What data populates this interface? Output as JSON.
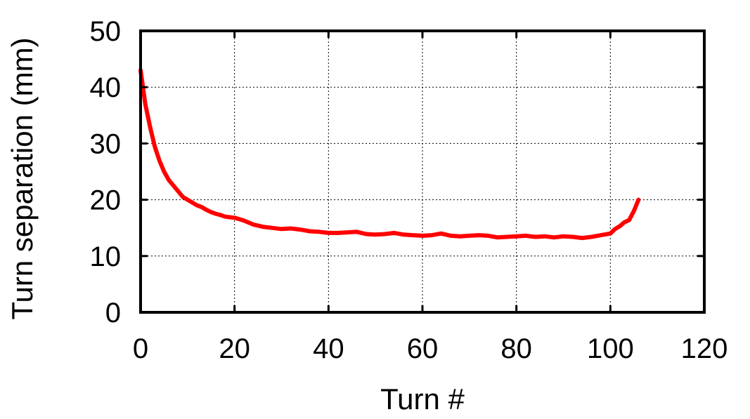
{
  "chart_data": {
    "type": "line",
    "title": "",
    "xlabel": "Turn #",
    "ylabel": "Turn separation (mm)",
    "xlim": [
      0,
      120
    ],
    "ylim": [
      0,
      50
    ],
    "xticks": [
      0,
      20,
      40,
      60,
      80,
      100,
      120
    ],
    "yticks": [
      0,
      10,
      20,
      30,
      40,
      50
    ],
    "grid": true,
    "line_color": "#ff0000",
    "series": [
      {
        "x": [
          0,
          1,
          2,
          3,
          4,
          5,
          6,
          7,
          8,
          9,
          10,
          11,
          12,
          13,
          14,
          15,
          16,
          17,
          18,
          19,
          20,
          22,
          24,
          26,
          28,
          30,
          32,
          34,
          36,
          38,
          40,
          42,
          44,
          46,
          48,
          50,
          52,
          54,
          56,
          58,
          60,
          62,
          64,
          65,
          66,
          68,
          70,
          72,
          74,
          76,
          78,
          80,
          82,
          84,
          86,
          88,
          90,
          92,
          94,
          96,
          98,
          100,
          101,
          102,
          103,
          104,
          105,
          106
        ],
        "y": [
          43,
          37,
          33,
          29.5,
          27,
          25,
          23.5,
          22.5,
          21.5,
          20.5,
          20,
          19.5,
          19,
          18.7,
          18.2,
          17.8,
          17.5,
          17.3,
          17,
          16.9,
          16.8,
          16.3,
          15.6,
          15.2,
          15,
          14.8,
          14.9,
          14.7,
          14.4,
          14.3,
          14.1,
          14.1,
          14.2,
          14.3,
          13.9,
          13.8,
          13.9,
          14.1,
          13.8,
          13.7,
          13.6,
          13.7,
          14,
          13.8,
          13.6,
          13.5,
          13.6,
          13.7,
          13.6,
          13.3,
          13.4,
          13.5,
          13.6,
          13.4,
          13.5,
          13.3,
          13.5,
          13.4,
          13.2,
          13.4,
          13.7,
          14,
          14.8,
          15.3,
          16,
          16.4,
          18,
          20
        ]
      }
    ]
  }
}
